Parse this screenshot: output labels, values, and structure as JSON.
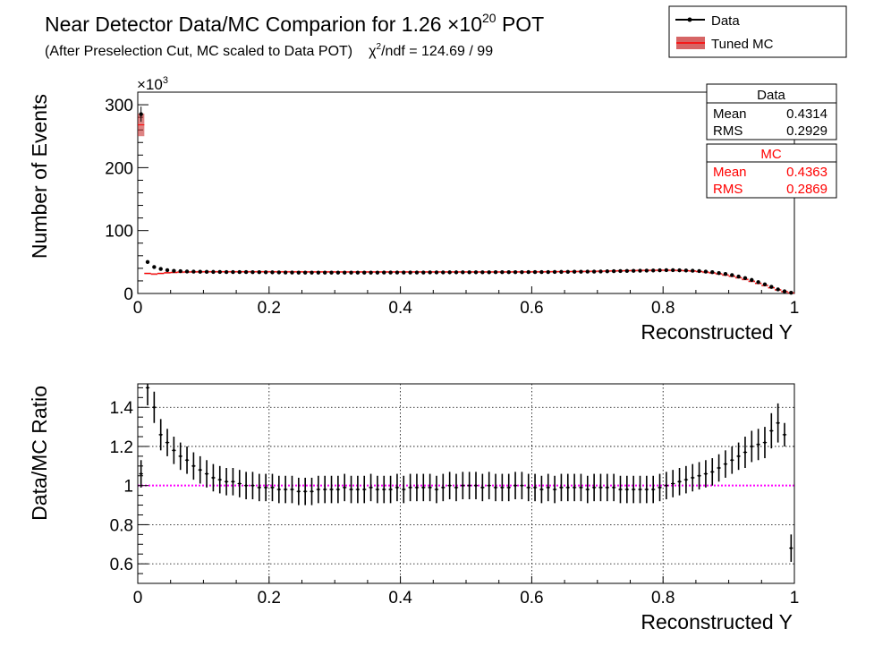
{
  "header": {
    "title_main": "Near Detector Data/MC Comparion for 1.26 ",
    "title_times": "×10",
    "title_exp": "20",
    "title_end": " POT",
    "subtitle": "(After Preselection Cut, MC scaled to Data POT)",
    "chi_symbol": "χ",
    "chi_sup": "2",
    "chi_text": "/ndf = 124.69 / 99"
  },
  "legend": {
    "data_label": "Data",
    "mc_label": "Tuned MC",
    "position": "top-right"
  },
  "stats": {
    "data": {
      "title": "Data",
      "mean_label": "Mean",
      "mean": "0.4314",
      "rms_label": "RMS",
      "rms": "0.2929"
    },
    "mc": {
      "title": "MC",
      "mean_label": "Mean",
      "mean": "0.4363",
      "rms_label": "RMS",
      "rms": "0.2869"
    }
  },
  "colors": {
    "data": "#000000",
    "mc": "#ff0000",
    "ratio_line": "#ff00ff"
  },
  "chart_data": [
    {
      "type": "scatter",
      "xlabel": "Reconstructed Y",
      "ylabel": "Number of Events",
      "exponent_label": "×10",
      "exponent": "3",
      "xlim": [
        0,
        1
      ],
      "ylim": [
        0,
        320
      ],
      "xticks": [
        0,
        0.2,
        0.4,
        0.6,
        0.8,
        1
      ],
      "xtick_labels": [
        "0",
        "0.2",
        "0.4",
        "0.6",
        "0.8",
        "1"
      ],
      "yticks": [
        0,
        100,
        200,
        300
      ],
      "ytick_labels": [
        "0",
        "100",
        "200",
        "300"
      ],
      "grid": false,
      "bin_width": 0.01,
      "x": [
        0.005,
        0.015,
        0.025,
        0.035,
        0.045,
        0.055,
        0.065,
        0.075,
        0.085,
        0.095,
        0.105,
        0.115,
        0.125,
        0.135,
        0.145,
        0.155,
        0.165,
        0.175,
        0.185,
        0.195,
        0.205,
        0.215,
        0.225,
        0.235,
        0.245,
        0.255,
        0.265,
        0.275,
        0.285,
        0.295,
        0.305,
        0.315,
        0.325,
        0.335,
        0.345,
        0.355,
        0.365,
        0.375,
        0.385,
        0.395,
        0.405,
        0.415,
        0.425,
        0.435,
        0.445,
        0.455,
        0.465,
        0.475,
        0.485,
        0.495,
        0.505,
        0.515,
        0.525,
        0.535,
        0.545,
        0.555,
        0.565,
        0.575,
        0.585,
        0.595,
        0.605,
        0.615,
        0.625,
        0.635,
        0.645,
        0.655,
        0.665,
        0.675,
        0.685,
        0.695,
        0.705,
        0.715,
        0.725,
        0.735,
        0.745,
        0.755,
        0.765,
        0.775,
        0.785,
        0.795,
        0.805,
        0.815,
        0.825,
        0.835,
        0.845,
        0.855,
        0.865,
        0.875,
        0.885,
        0.895,
        0.905,
        0.915,
        0.925,
        0.935,
        0.945,
        0.955,
        0.965,
        0.975,
        0.985,
        0.995
      ],
      "series": [
        {
          "name": "Data",
          "values": [
            285,
            50,
            42,
            39,
            37,
            36,
            35.5,
            35,
            34.8,
            34.5,
            34.4,
            34.3,
            34.2,
            34.1,
            34,
            34,
            34,
            33.9,
            33.8,
            33.7,
            33.6,
            33.5,
            33.4,
            33.3,
            33.2,
            33.2,
            33.2,
            33.2,
            33.1,
            33.1,
            33.1,
            33.1,
            33.1,
            33.1,
            33.1,
            33.2,
            33.2,
            33.3,
            33.3,
            33.4,
            33.4,
            33.4,
            33.4,
            33.4,
            33.5,
            33.5,
            33.5,
            33.6,
            33.6,
            33.7,
            33.7,
            33.7,
            33.7,
            33.7,
            33.8,
            33.8,
            33.8,
            33.9,
            33.9,
            34,
            34,
            34,
            34.1,
            34.2,
            34.3,
            34.4,
            34.5,
            34.6,
            34.7,
            34.8,
            35,
            35.2,
            35.4,
            35.6,
            35.8,
            36,
            36.2,
            36.4,
            36.6,
            36.8,
            37,
            37,
            36.8,
            36.6,
            36.2,
            35.6,
            34.8,
            33.8,
            32.5,
            31,
            29.2,
            27,
            24.5,
            21.5,
            18,
            14.5,
            10.5,
            6.5,
            3.5,
            1.2
          ]
        },
        {
          "name": "Tuned MC",
          "values": [
            268,
            32,
            31,
            32,
            33,
            33.5,
            34,
            34.2,
            34.4,
            34.5,
            34.6,
            34.6,
            34.6,
            34.6,
            34.6,
            34.6,
            34.6,
            34.6,
            34.6,
            34.6,
            34.6,
            34.5,
            34.5,
            34.5,
            34.5,
            34.4,
            34.4,
            34.4,
            34.4,
            34.4,
            34.3,
            34.3,
            34.3,
            34.3,
            34.3,
            34.3,
            34.3,
            34.3,
            34.3,
            34.3,
            34.3,
            34.3,
            34.3,
            34.3,
            34.3,
            34.3,
            34.3,
            34.3,
            34.3,
            34.3,
            34.3,
            34.3,
            34.3,
            34.3,
            34.3,
            34.3,
            34.3,
            34.4,
            34.4,
            34.4,
            34.5,
            34.5,
            34.6,
            34.7,
            34.8,
            34.9,
            35,
            35.1,
            35.2,
            35.3,
            35.5,
            35.7,
            35.9,
            36.1,
            36.3,
            36.5,
            36.7,
            36.8,
            36.9,
            37,
            37,
            36.9,
            36.7,
            36.3,
            35.8,
            35,
            34,
            32.8,
            31.3,
            29.5,
            27.5,
            25.2,
            22.5,
            19.5,
            16.2,
            12.8,
            9.2,
            5.8,
            3,
            1
          ]
        }
      ]
    },
    {
      "type": "scatter",
      "xlabel": "Reconstructed Y",
      "ylabel": "Data/MC Ratio",
      "xlim": [
        0,
        1
      ],
      "ylim": [
        0.5,
        1.52
      ],
      "xticks": [
        0,
        0.2,
        0.4,
        0.6,
        0.8,
        1
      ],
      "xtick_labels": [
        "0",
        "0.2",
        "0.4",
        "0.6",
        "0.8",
        "1"
      ],
      "yticks": [
        0.6,
        0.8,
        1,
        1.2,
        1.4
      ],
      "ytick_labels": [
        "0.6",
        "0.8",
        "1",
        "1.2",
        "1.4"
      ],
      "grid": true,
      "reference_line": 1,
      "x": [
        0.005,
        0.015,
        0.025,
        0.035,
        0.045,
        0.055,
        0.065,
        0.075,
        0.085,
        0.095,
        0.105,
        0.115,
        0.125,
        0.135,
        0.145,
        0.155,
        0.165,
        0.175,
        0.185,
        0.195,
        0.205,
        0.215,
        0.225,
        0.235,
        0.245,
        0.255,
        0.265,
        0.275,
        0.285,
        0.295,
        0.305,
        0.315,
        0.325,
        0.335,
        0.345,
        0.355,
        0.365,
        0.375,
        0.385,
        0.395,
        0.405,
        0.415,
        0.425,
        0.435,
        0.445,
        0.455,
        0.465,
        0.475,
        0.485,
        0.495,
        0.505,
        0.515,
        0.525,
        0.535,
        0.545,
        0.555,
        0.565,
        0.575,
        0.585,
        0.595,
        0.605,
        0.615,
        0.625,
        0.635,
        0.645,
        0.655,
        0.665,
        0.675,
        0.685,
        0.695,
        0.705,
        0.715,
        0.725,
        0.735,
        0.745,
        0.755,
        0.765,
        0.775,
        0.785,
        0.795,
        0.805,
        0.815,
        0.825,
        0.835,
        0.845,
        0.855,
        0.865,
        0.875,
        0.885,
        0.895,
        0.905,
        0.915,
        0.925,
        0.935,
        0.945,
        0.955,
        0.965,
        0.975,
        0.985,
        0.995
      ],
      "values": [
        1.06,
        1.5,
        1.4,
        1.26,
        1.22,
        1.18,
        1.15,
        1.13,
        1.1,
        1.08,
        1.06,
        1.04,
        1.03,
        1.02,
        1.02,
        1.01,
        1.0,
        1.0,
        0.99,
        0.99,
        0.99,
        0.98,
        0.98,
        0.98,
        0.97,
        0.97,
        0.97,
        0.98,
        0.98,
        0.98,
        0.98,
        0.99,
        0.98,
        0.98,
        0.98,
        0.99,
        0.98,
        0.98,
        0.98,
        0.99,
        0.98,
        0.99,
        0.99,
        0.99,
        0.99,
        0.98,
        0.99,
        1.0,
        0.99,
        1.0,
        1.0,
        1.0,
        0.99,
        1.0,
        0.99,
        0.99,
        0.99,
        1.0,
        1.0,
        0.99,
        0.99,
        0.98,
        0.99,
        0.98,
        0.99,
        0.99,
        0.99,
        0.99,
        0.98,
        0.99,
        0.99,
        0.99,
        0.99,
        0.98,
        0.98,
        0.98,
        0.98,
        0.98,
        0.98,
        0.99,
        1.0,
        1.01,
        1.02,
        1.03,
        1.04,
        1.05,
        1.06,
        1.07,
        1.09,
        1.11,
        1.13,
        1.15,
        1.17,
        1.2,
        1.21,
        1.22,
        1.28,
        1.32,
        1.26,
        0.68
      ],
      "errors": [
        0.07,
        0.09,
        0.08,
        0.08,
        0.07,
        0.07,
        0.07,
        0.07,
        0.07,
        0.07,
        0.07,
        0.07,
        0.07,
        0.07,
        0.07,
        0.07,
        0.07,
        0.07,
        0.07,
        0.07,
        0.07,
        0.07,
        0.07,
        0.07,
        0.07,
        0.07,
        0.07,
        0.07,
        0.07,
        0.07,
        0.07,
        0.07,
        0.07,
        0.07,
        0.07,
        0.07,
        0.07,
        0.07,
        0.07,
        0.07,
        0.07,
        0.07,
        0.07,
        0.07,
        0.07,
        0.07,
        0.07,
        0.07,
        0.07,
        0.07,
        0.07,
        0.07,
        0.07,
        0.07,
        0.07,
        0.07,
        0.07,
        0.07,
        0.07,
        0.07,
        0.07,
        0.07,
        0.07,
        0.07,
        0.07,
        0.07,
        0.07,
        0.07,
        0.07,
        0.07,
        0.07,
        0.07,
        0.07,
        0.07,
        0.07,
        0.07,
        0.07,
        0.07,
        0.07,
        0.07,
        0.07,
        0.07,
        0.07,
        0.07,
        0.07,
        0.07,
        0.07,
        0.07,
        0.07,
        0.07,
        0.07,
        0.07,
        0.08,
        0.08,
        0.08,
        0.08,
        0.09,
        0.1,
        0.06,
        0.07
      ]
    }
  ]
}
